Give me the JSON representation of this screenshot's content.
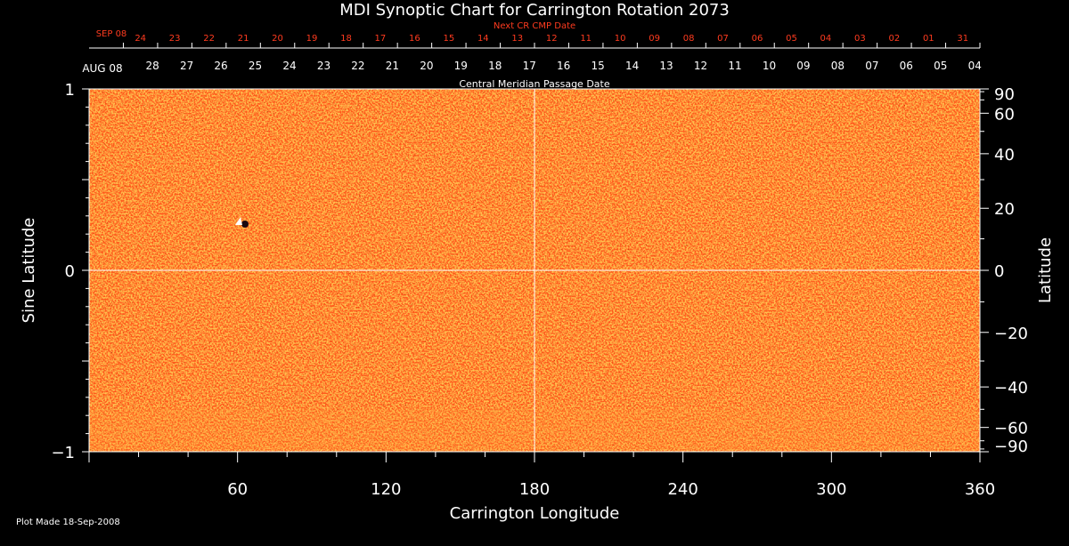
{
  "chart_data": {
    "type": "heatmap",
    "title": "MDI Synoptic Chart for Carrington Rotation 2073",
    "xlabel": "Carrington Longitude",
    "ylabel_left": "Sine Latitude",
    "ylabel_right": "Latitude",
    "xlim": [
      0,
      360
    ],
    "ylim": [
      -1,
      1
    ],
    "x_ticks": [
      60,
      120,
      180,
      240,
      300,
      360
    ],
    "y_ticks_left": [
      {
        "value": 1,
        "label": "1"
      },
      {
        "value": 0,
        "label": "0"
      },
      {
        "value": -1,
        "label": "−1"
      }
    ],
    "y_ticks_right": [
      90,
      60,
      40,
      20,
      0,
      -20,
      -40,
      -60,
      -90
    ],
    "top_axis_title": "Central Meridian Passage Date",
    "top_axis_start_label": "AUG 08",
    "top_axis_days": [
      "28",
      "27",
      "26",
      "25",
      "24",
      "23",
      "22",
      "21",
      "20",
      "19",
      "18",
      "17",
      "16",
      "15",
      "14",
      "13",
      "12",
      "11",
      "10",
      "09",
      "08",
      "07",
      "06",
      "05",
      "04"
    ],
    "next_cr_title": "Next CR CMP Date",
    "next_cr_start_label": "SEP 08",
    "next_cr_days": [
      "24",
      "23",
      "22",
      "21",
      "20",
      "19",
      "18",
      "17",
      "16",
      "15",
      "14",
      "13",
      "12",
      "11",
      "10",
      "09",
      "08",
      "07",
      "06",
      "05",
      "04",
      "03",
      "02",
      "01",
      "31"
    ],
    "grid_lines": {
      "longitude": [
        180
      ],
      "sine_latitude": [
        0
      ]
    },
    "colormap": [
      "#1a0810",
      "#6e1a10",
      "#c8300c",
      "#ff5a1e",
      "#ff8c32",
      "#ffd060",
      "#ffffff"
    ],
    "footer": "Plot Made 18-Sep-2008",
    "colors": {
      "background": "#000000",
      "axes": "#ffffff",
      "next_cr": "#ff3b1f",
      "field": "#ff5a1e"
    }
  }
}
